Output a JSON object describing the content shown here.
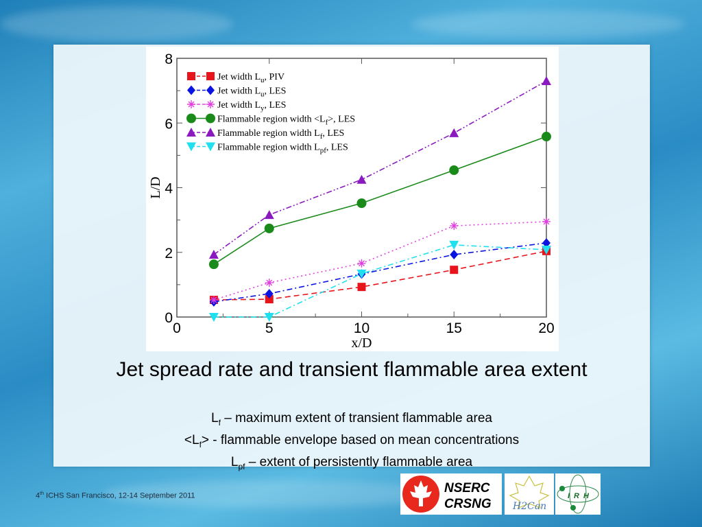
{
  "slide": {
    "title": "Jet spread rate and transient flammable area extent",
    "notes": [
      {
        "sym": "L",
        "sub": "f",
        "pre": "",
        "post": "",
        "text": " – maximum extent of transient flammable area"
      },
      {
        "sym": "L",
        "sub": "f",
        "pre": "<",
        "post": ">",
        "text": " - flammable envelope based on mean concentrations"
      },
      {
        "sym": "L",
        "sub": "pf",
        "pre": "",
        "post": "",
        "text": " – extent of persistently flammable area"
      }
    ],
    "footer": {
      "num": "4",
      "sup": "th",
      "text": " ICHS  San Francisco, 12-14 September 2011"
    },
    "logos": {
      "nserc_line1": "NSERC",
      "nserc_line2": "CRSNG",
      "hcan": "H2Can",
      "irh": "IRH"
    }
  },
  "chart_data": {
    "type": "line",
    "xlabel": "x/D",
    "ylabel": "L/D",
    "xlim": [
      0,
      20
    ],
    "ylim": [
      0,
      8
    ],
    "xticks": [
      0,
      5,
      10,
      15,
      20
    ],
    "yticks": [
      0,
      2,
      4,
      6,
      8
    ],
    "grid": false,
    "legend_position": "top-left",
    "x": [
      2,
      5,
      10,
      15,
      20
    ],
    "series": [
      {
        "name": "Jet width Lu, PIV",
        "label": "Jet width L",
        "sub": "u",
        "suffix": ", PIV",
        "color": "#e8141c",
        "marker": "square",
        "dash": "8,5",
        "values": [
          0.53,
          0.55,
          0.93,
          1.46,
          2.04
        ]
      },
      {
        "name": "Jet width Lu, LES",
        "label": "Jet width L",
        "sub": "u",
        "suffix": ", LES",
        "color": "#0a14e0",
        "marker": "diamond",
        "dash": "8,4,2,4",
        "values": [
          0.47,
          0.72,
          1.33,
          1.93,
          2.29
        ]
      },
      {
        "name": "Jet width Ly, LES",
        "label": "Jet width L",
        "sub": "y",
        "suffix": ", LES",
        "color": "#e040e0",
        "marker": "star",
        "dash": "2,4",
        "values": [
          0.53,
          1.06,
          1.66,
          2.82,
          2.95
        ]
      },
      {
        "name": "Flammable region width <Lf>, LES",
        "label": "Flammable region width <L",
        "sub": "f",
        "suffix": ">, LES",
        "color": "#1a8a1a",
        "marker": "circle",
        "dash": "",
        "values": [
          1.63,
          2.74,
          3.52,
          4.54,
          5.58
        ]
      },
      {
        "name": "Flammable region width Lf, LES",
        "label": "Flammable region width  L",
        "sub": "f",
        "suffix": ", LES",
        "color": "#8a1ac0",
        "marker": "triangle-up",
        "dash": "8,3,2,3,2,3",
        "values": [
          1.93,
          3.16,
          4.25,
          5.69,
          7.3
        ]
      },
      {
        "name": "Flammable region width Lpf, LES",
        "label": "Flammable region width L",
        "sub": "pf",
        "suffix": ", LES",
        "color": "#20e0f0",
        "marker": "triangle-down",
        "dash": "8,4,2,4",
        "values": [
          0,
          0,
          1.34,
          2.23,
          2.08
        ]
      }
    ]
  }
}
